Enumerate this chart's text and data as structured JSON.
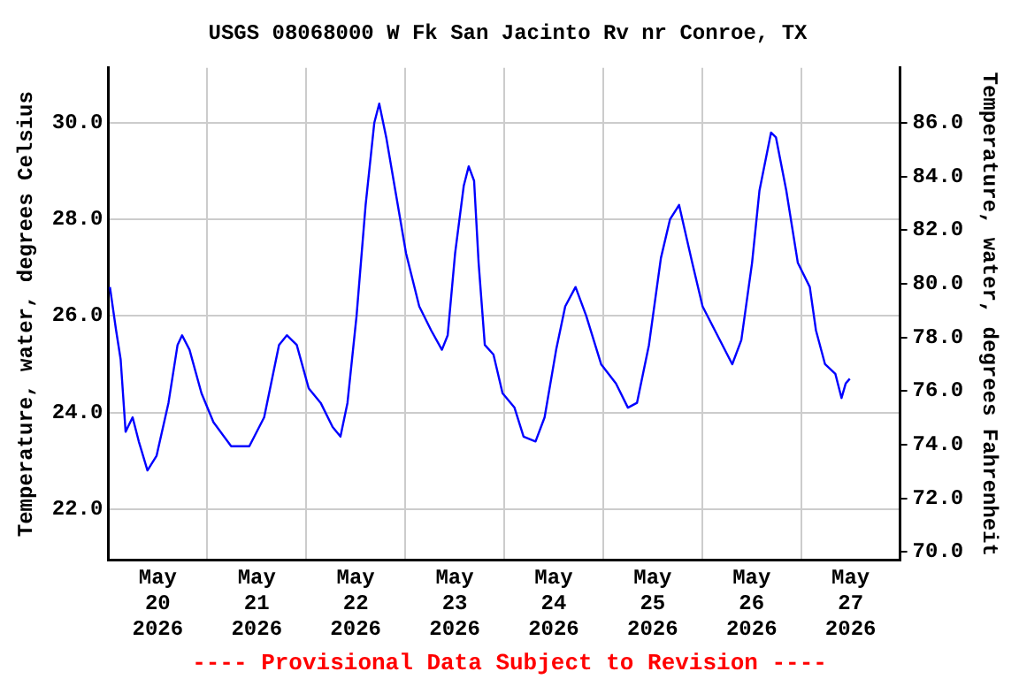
{
  "chart_data": {
    "type": "line",
    "title": "USGS 08068000 W Fk San Jacinto Rv nr Conroe, TX",
    "ylabel": "Temperature, water, degrees Celsius",
    "y2label": "Temperature, water, degrees Fahrenheit",
    "annotations": [
      "---- Provisional Data Subject to Revision ----"
    ],
    "x": [
      "2026-05-20T00:24",
      "2026-05-20T01:54",
      "2026-05-20T03:00",
      "2026-05-20T04:12",
      "2026-05-20T05:54",
      "2026-05-20T07:24",
      "2026-05-20T09:30",
      "2026-05-20T11:42",
      "2026-05-20T14:36",
      "2026-05-20T16:48",
      "2026-05-20T17:54",
      "2026-05-20T19:42",
      "2026-05-20T22:36",
      "2026-05-21T01:30",
      "2026-05-21T05:48",
      "2026-05-21T10:12",
      "2026-05-21T13:48",
      "2026-05-21T17:24",
      "2026-05-21T19:18",
      "2026-05-21T21:42",
      "2026-05-22T00:36",
      "2026-05-22T03:30",
      "2026-05-22T06:24",
      "2026-05-22T08:18",
      "2026-05-22T10:00",
      "2026-05-22T12:12",
      "2026-05-22T14:24",
      "2026-05-22T16:30",
      "2026-05-22T17:42",
      "2026-05-22T19:24",
      "2026-05-22T21:36",
      "2026-05-23T00:12",
      "2026-05-23T03:24",
      "2026-05-23T06:18",
      "2026-05-23T08:54",
      "2026-05-23T10:18",
      "2026-05-23T12:06",
      "2026-05-23T14:12",
      "2026-05-23T15:24",
      "2026-05-23T16:42",
      "2026-05-23T17:48",
      "2026-05-23T19:18",
      "2026-05-23T21:24",
      "2026-05-23T23:36",
      "2026-05-24T02:30",
      "2026-05-24T04:42",
      "2026-05-24T07:36",
      "2026-05-24T09:48",
      "2026-05-24T12:36",
      "2026-05-24T14:48",
      "2026-05-24T17:18",
      "2026-05-24T19:54",
      "2026-05-24T23:30",
      "2026-05-25T03:06",
      "2026-05-25T06:00",
      "2026-05-25T08:12",
      "2026-05-25T11:06",
      "2026-05-25T14:00",
      "2026-05-25T16:12",
      "2026-05-25T18:24",
      "2026-05-25T21:36",
      "2026-05-26T00:06",
      "2026-05-26T03:42",
      "2026-05-26T07:18",
      "2026-05-26T09:30",
      "2026-05-26T12:06",
      "2026-05-26T13:54",
      "2026-05-26T16:42",
      "2026-05-26T17:54",
      "2026-05-26T20:24",
      "2026-05-26T23:12",
      "2026-05-27T02:06",
      "2026-05-27T03:36",
      "2026-05-27T05:48",
      "2026-05-27T08:18",
      "2026-05-27T09:48",
      "2026-05-27T10:48",
      "2026-05-27T11:48"
    ],
    "series": [
      {
        "color": "#0000ff",
        "values": [
          26.6,
          25.7,
          25.1,
          23.6,
          23.9,
          23.4,
          22.8,
          23.1,
          24.2,
          25.4,
          25.6,
          25.3,
          24.4,
          23.8,
          23.3,
          23.3,
          23.9,
          25.4,
          25.6,
          25.4,
          24.5,
          24.2,
          23.7,
          23.5,
          24.2,
          26.0,
          28.3,
          30.0,
          30.4,
          29.7,
          28.6,
          27.3,
          26.2,
          25.7,
          25.3,
          25.6,
          27.3,
          28.7,
          29.1,
          28.8,
          27.1,
          25.4,
          25.2,
          24.4,
          24.1,
          23.5,
          23.4,
          23.9,
          25.3,
          26.2,
          26.6,
          26.0,
          25.0,
          24.6,
          24.1,
          24.2,
          25.4,
          27.2,
          28.0,
          28.3,
          27.1,
          26.2,
          25.6,
          25.0,
          25.5,
          27.1,
          28.6,
          29.8,
          29.7,
          28.6,
          27.1,
          26.6,
          25.7,
          25.0,
          24.8,
          24.3,
          24.6,
          24.7
        ]
      }
    ],
    "xlim": [
      "2026-05-20T00:00",
      "2026-05-28T00:00"
    ],
    "xticks": [
      {
        "value": "2026-05-20T00:00",
        "label": null
      },
      {
        "value": "2026-05-20T12:00",
        "label": "May 20 2026"
      },
      {
        "value": "2026-05-21T00:00",
        "label": null
      },
      {
        "value": "2026-05-21T12:00",
        "label": "May 21 2026"
      },
      {
        "value": "2026-05-22T00:00",
        "label": null
      },
      {
        "value": "2026-05-22T12:00",
        "label": "May 22 2026"
      },
      {
        "value": "2026-05-23T00:00",
        "label": null
      },
      {
        "value": "2026-05-23T12:00",
        "label": "May 23 2026"
      },
      {
        "value": "2026-05-24T00:00",
        "label": null
      },
      {
        "value": "2026-05-24T12:00",
        "label": "May 24 2026"
      },
      {
        "value": "2026-05-25T00:00",
        "label": null
      },
      {
        "value": "2026-05-25T12:00",
        "label": "May 25 2026"
      },
      {
        "value": "2026-05-26T00:00",
        "label": null
      },
      {
        "value": "2026-05-26T12:00",
        "label": "May 26 2026"
      },
      {
        "value": "2026-05-27T00:00",
        "label": null
      },
      {
        "value": "2026-05-27T12:00",
        "label": "May 27 2026"
      },
      {
        "value": "2026-05-28T00:00",
        "label": null
      }
    ],
    "ylim": [
      20.94,
      31.14
    ],
    "yticks": [
      {
        "value": 22,
        "label": "22.0"
      },
      {
        "value": 24,
        "label": "24.0"
      },
      {
        "value": 26,
        "label": "26.0"
      },
      {
        "value": 28,
        "label": "28.0"
      },
      {
        "value": 30,
        "label": "30.0"
      }
    ],
    "y2lim": [
      69.69,
      88.05
    ],
    "y2ticks": [
      {
        "value": 70,
        "label": "70.0"
      },
      {
        "value": 72,
        "label": "72.0"
      },
      {
        "value": 74,
        "label": "74.0"
      },
      {
        "value": 76,
        "label": "76.0"
      },
      {
        "value": 78,
        "label": "78.0"
      },
      {
        "value": 80,
        "label": "80.0"
      },
      {
        "value": 82,
        "label": "82.0"
      },
      {
        "value": 84,
        "label": "84.0"
      },
      {
        "value": 86,
        "label": "86.0"
      }
    ],
    "grid": true,
    "legend": false,
    "marker": "none",
    "line_style": "solid"
  }
}
